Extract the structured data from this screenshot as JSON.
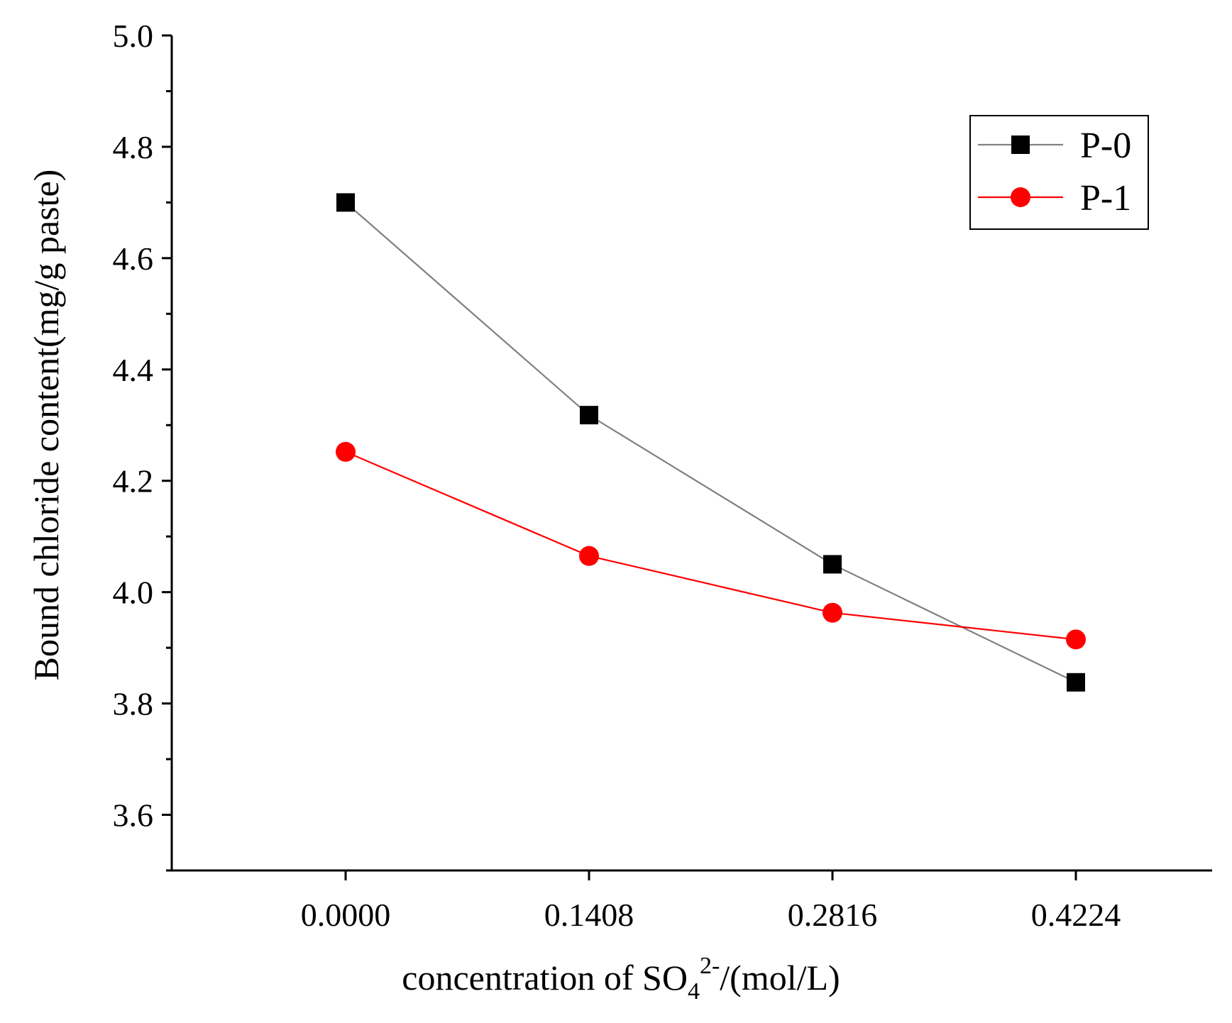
{
  "chart_data": {
    "type": "line",
    "title": "",
    "xlabel": {
      "prefix": "concentration of SO",
      "subscript": "4",
      "superscript": "2-",
      "suffix": "/(mol/L)"
    },
    "ylabel": "Bound chloride content(mg/g paste)",
    "categories": [
      "0.0000",
      "0.1408",
      "0.2816",
      "0.4224"
    ],
    "ylim": [
      3.5,
      5.0
    ],
    "yticks": [
      "3.6",
      "3.8",
      "4.0",
      "4.2",
      "4.4",
      "4.6",
      "4.8",
      "5.0"
    ],
    "legend_position": "top-right",
    "series": [
      {
        "name": "P-0",
        "marker": "square",
        "line_color": "#808080",
        "marker_color": "#000000",
        "values": [
          4.7,
          4.318,
          4.05,
          3.838
        ]
      },
      {
        "name": "P-1",
        "marker": "circle",
        "line_color": "#ff0000",
        "marker_color": "#ff0000",
        "values": [
          4.252,
          4.065,
          3.963,
          3.915
        ]
      }
    ]
  }
}
